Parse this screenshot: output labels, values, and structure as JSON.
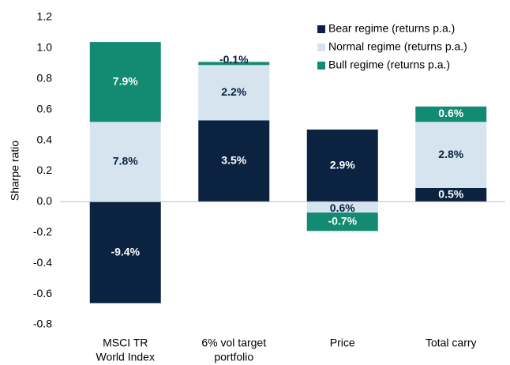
{
  "chart_data": {
    "type": "stacked-bar",
    "y_label": "Sharpe ratio",
    "categories": [
      [
        "MSCI TR",
        "World Index"
      ],
      [
        "6% vol target",
        "portfolio"
      ],
      [
        "Price"
      ],
      [
        "Total carry"
      ]
    ],
    "series": [
      {
        "name": "Bear regime (returns p.a.)",
        "color": "#0b2341",
        "values": [
          -0.66,
          0.53,
          0.47,
          0.09
        ],
        "value_labels": [
          "-9.4%",
          "3.5%",
          "2.9%",
          "0.5%"
        ]
      },
      {
        "name": "Normal regime (returns p.a.)",
        "color": "#d5e4ef",
        "values": [
          0.52,
          0.36,
          -0.07,
          0.43
        ],
        "value_labels": [
          "7.8%",
          "2.2%",
          "0.6%",
          "2.8%"
        ]
      },
      {
        "name": "Bull regime (returns p.a.)",
        "color": "#138a72",
        "values": [
          0.52,
          0.02,
          -0.12,
          0.1
        ],
        "value_labels": [
          "7.9%",
          "-0.1%",
          "-0.7%",
          "0.6%"
        ]
      }
    ],
    "ylim": [
      -0.8,
      1.2
    ],
    "yticks": [
      -0.8,
      -0.6,
      -0.4,
      -0.2,
      {
        "value": 0,
        "label": "0.0"
      },
      0.2,
      0.4,
      0.6,
      0.8,
      {
        "value": 1,
        "label": "1.0"
      },
      1.2
    ],
    "legend": "top-right"
  }
}
